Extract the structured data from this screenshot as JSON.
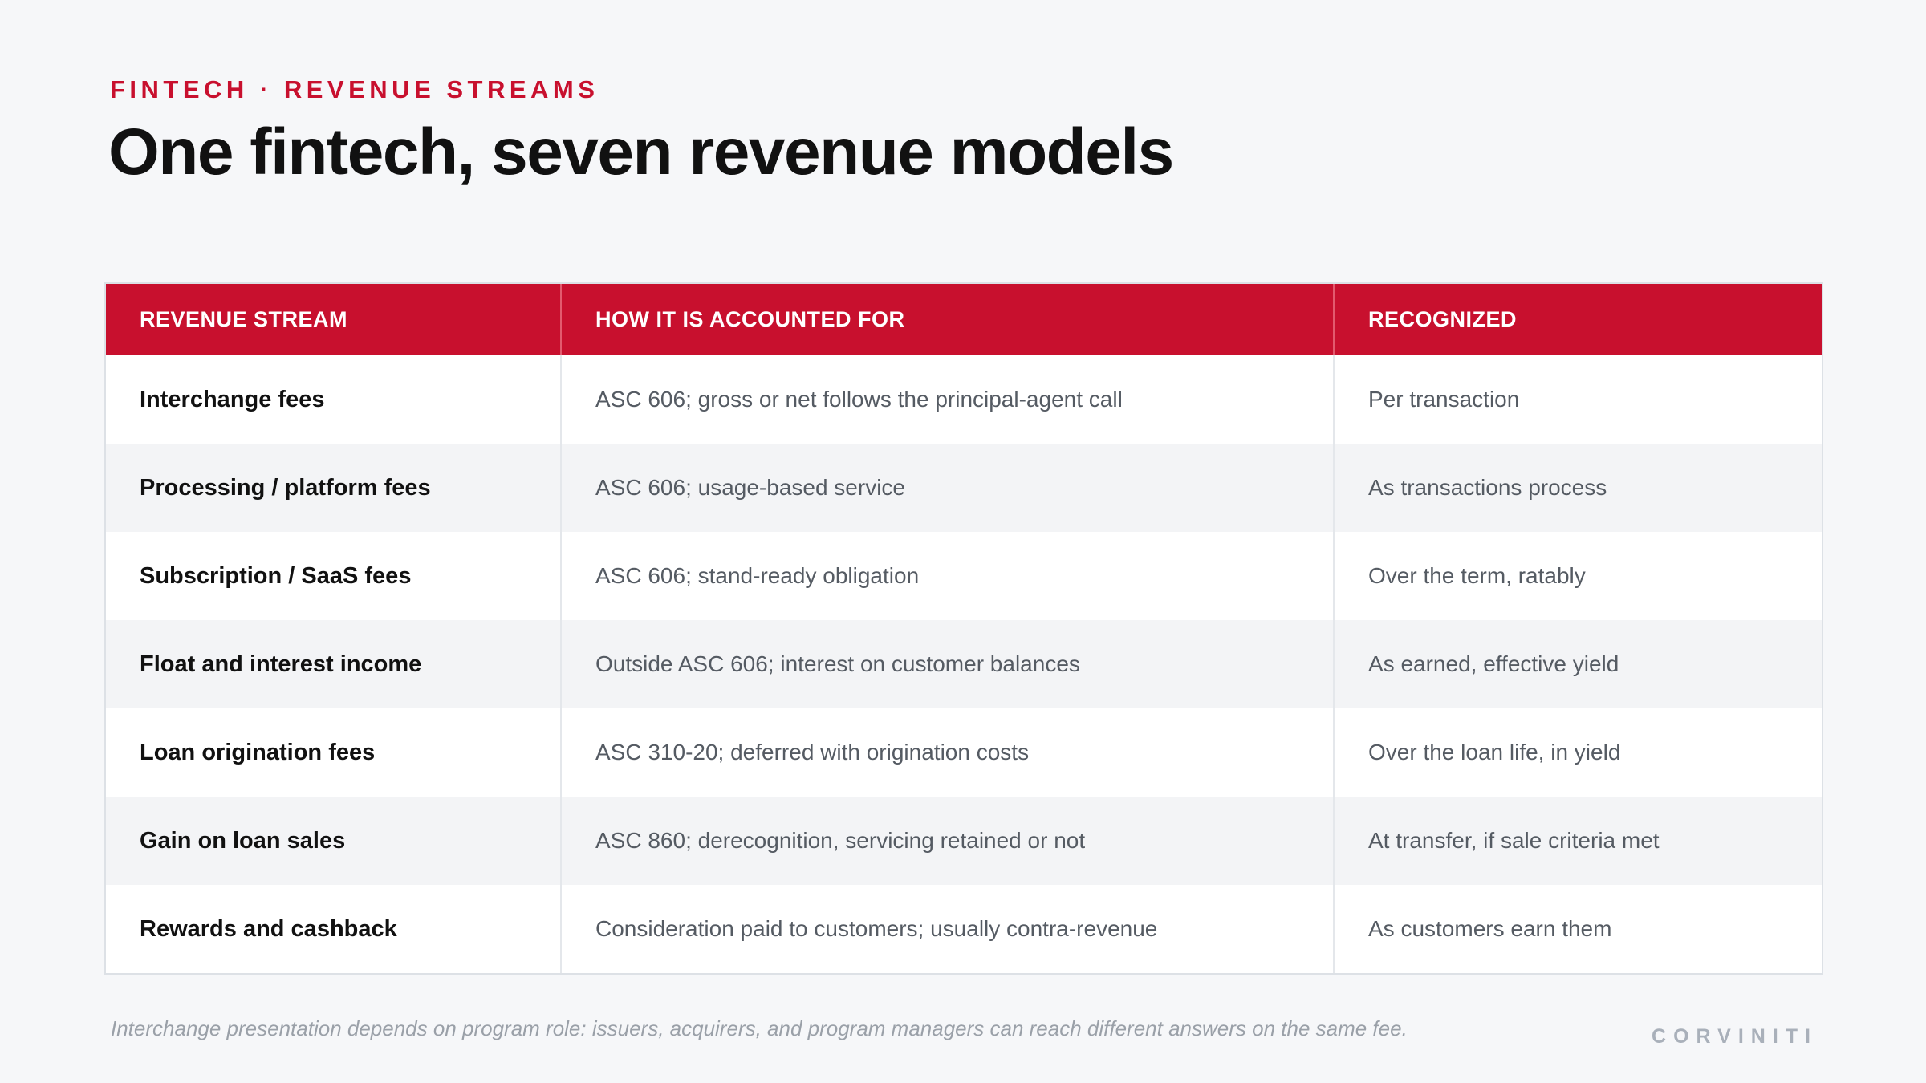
{
  "eyebrow": "FINTECH · REVENUE STREAMS",
  "title": "One fintech, seven revenue models",
  "table": {
    "headers": [
      "REVENUE STREAM",
      "HOW IT IS ACCOUNTED FOR",
      "RECOGNIZED"
    ],
    "rows": [
      [
        "Interchange fees",
        "ASC 606; gross or net follows the principal-agent call",
        "Per transaction"
      ],
      [
        "Processing / platform fees",
        "ASC 606; usage-based service",
        "As transactions process"
      ],
      [
        "Subscription / SaaS fees",
        "ASC 606; stand-ready obligation",
        "Over the term, ratably"
      ],
      [
        "Float and interest income",
        "Outside ASC 606; interest on customer balances",
        "As earned, effective yield"
      ],
      [
        "Loan origination fees",
        "ASC 310-20; deferred with origination costs",
        "Over the loan life, in yield"
      ],
      [
        "Gain on loan sales",
        "ASC 860; derecognition, servicing retained or not",
        "At transfer, if sale criteria met"
      ],
      [
        "Rewards and cashback",
        "Consideration paid to customers; usually contra-revenue",
        "As customers earn them"
      ]
    ]
  },
  "footnote": "Interchange presentation depends on program role: issuers, acquirers, and program managers can reach different answers on the same fee.",
  "brand": "CORVINITI",
  "colors": {
    "accent": "#c8102e",
    "background": "#f6f7f9",
    "title": "#111111",
    "muted": "#9aa0a8"
  }
}
